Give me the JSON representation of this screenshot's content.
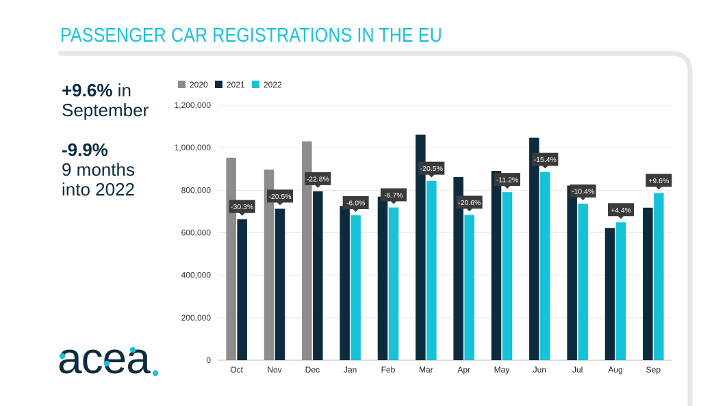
{
  "page": {
    "title": "PASSENGER CAR REGISTRATIONS IN THE EU",
    "accent_color": "#16c2d8",
    "frame_color": "#e6e6e6",
    "text_color": "#0d2b3e"
  },
  "highlights": [
    {
      "value": "+9.6%",
      "text": " in",
      "line2": "September",
      "line3": ""
    },
    {
      "value": "-9.9%",
      "text": "",
      "line2": "9 months",
      "line3": "into 2022"
    }
  ],
  "logo": {
    "text": "acea",
    "icon": "acea-logo-icon",
    "color": "#0d2b3e",
    "dot_color": "#16c2d8"
  },
  "chart_data": {
    "type": "bar",
    "title": "",
    "xlabel": "",
    "ylabel": "",
    "ylim": [
      0,
      1200000
    ],
    "yticks": [
      0,
      200000,
      400000,
      600000,
      800000,
      1000000,
      1200000
    ],
    "ytick_labels": [
      "0",
      "200,000",
      "400,000",
      "600,000",
      "800,000",
      "1,000,000",
      "1,200,000"
    ],
    "grid": true,
    "legend_position": "top-left",
    "categories": [
      "Oct",
      "Nov",
      "Dec",
      "Jan",
      "Feb",
      "Mar",
      "Apr",
      "May",
      "Jun",
      "Jul",
      "Aug",
      "Sep"
    ],
    "series": [
      {
        "name": "2020",
        "color": "#8c8c8c",
        "values": [
          953000,
          897000,
          1030000,
          null,
          null,
          null,
          null,
          null,
          null,
          null,
          null,
          null
        ]
      },
      {
        "name": "2021",
        "color": "#0d2b3e",
        "values": [
          664000,
          713000,
          795000,
          726000,
          770000,
          1062000,
          862000,
          891000,
          1047000,
          822000,
          622000,
          718000
        ]
      },
      {
        "name": "2022",
        "color": "#16c2d8",
        "values": [
          null,
          null,
          null,
          682000,
          719000,
          844000,
          684000,
          791000,
          886000,
          737000,
          649000,
          787000
        ]
      }
    ],
    "annotations": [
      {
        "category": "Oct",
        "series": "2021",
        "label": "-30.3%"
      },
      {
        "category": "Nov",
        "series": "2021",
        "label": "-20.5%"
      },
      {
        "category": "Dec",
        "series": "2021",
        "label": "-22.8%"
      },
      {
        "category": "Jan",
        "series": "2022",
        "label": "-6.0%"
      },
      {
        "category": "Feb",
        "series": "2022",
        "label": "-6.7%"
      },
      {
        "category": "Mar",
        "series": "2022",
        "label": "-20.5%"
      },
      {
        "category": "Apr",
        "series": "2022",
        "label": "-20.6%"
      },
      {
        "category": "May",
        "series": "2022",
        "label": "-11.2%"
      },
      {
        "category": "Jun",
        "series": "2022",
        "label": "-15.4%"
      },
      {
        "category": "Jul",
        "series": "2022",
        "label": "-10.4%"
      },
      {
        "category": "Aug",
        "series": "2022",
        "label": "+4.4%"
      },
      {
        "category": "Sep",
        "series": "2022",
        "label": "+9.6%"
      }
    ],
    "annotation_color": "#3a3a3a"
  }
}
